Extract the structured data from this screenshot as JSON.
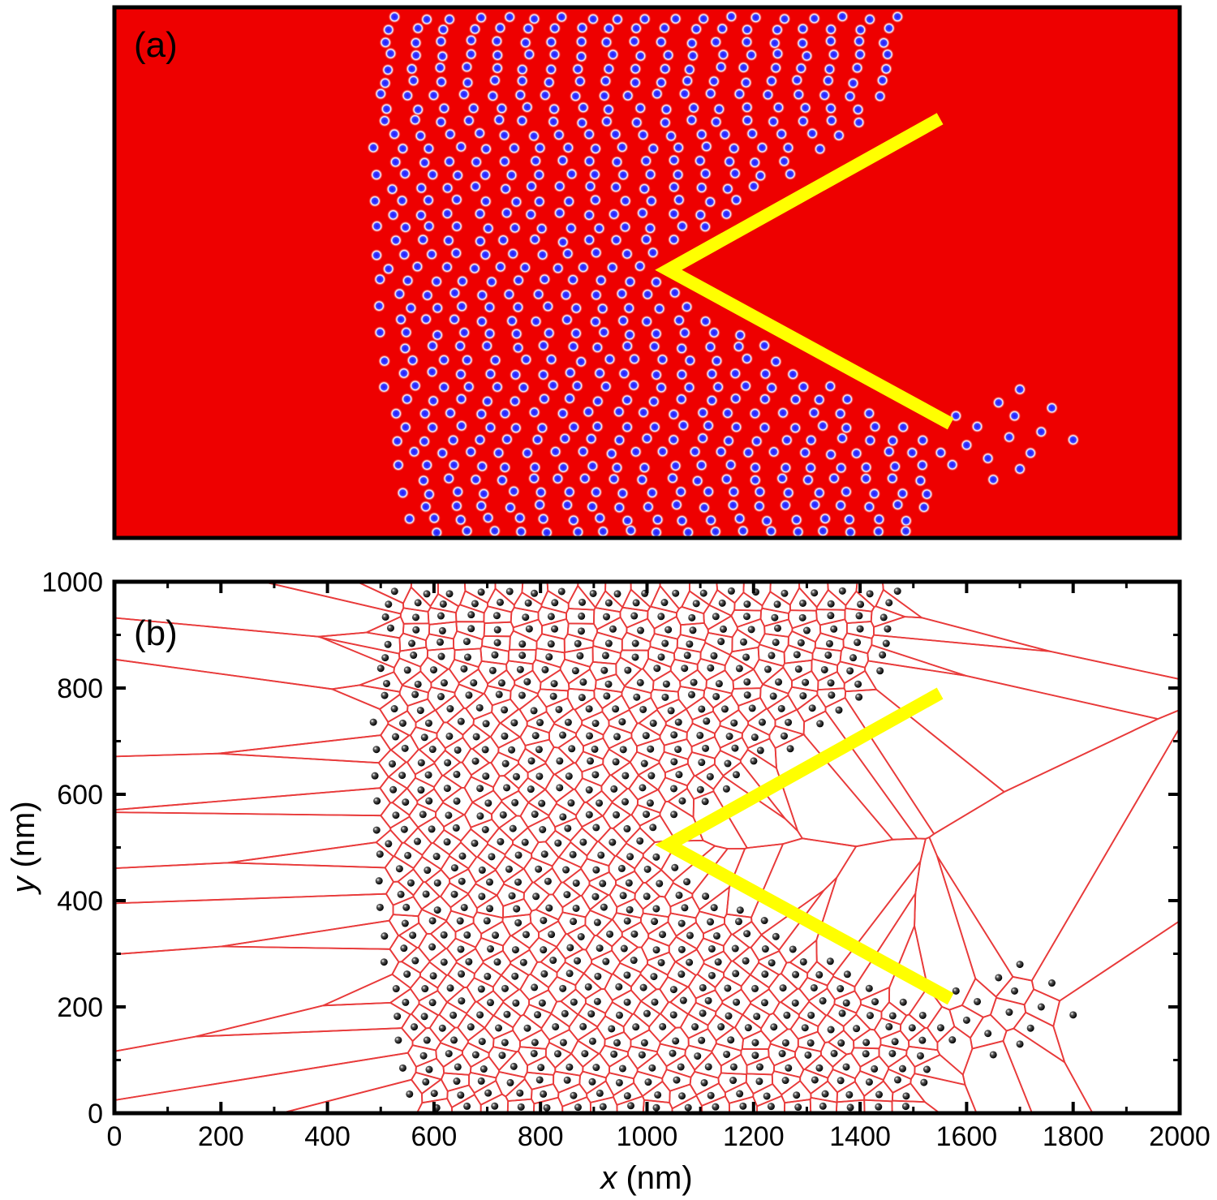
{
  "panels": [
    {
      "id": "a",
      "label": "(a)"
    },
    {
      "id": "b",
      "label": "(b)"
    }
  ],
  "colors": {
    "background_a": "#ee0000",
    "vortex_core": "#1a1aff",
    "vortex_halo": "#ffffff",
    "barrier": "#ffff00",
    "voronoi_edge": "#e83a3a",
    "particle": "#111111",
    "frame": "#000000"
  },
  "chart_data": {
    "type": "scatter",
    "xlabel_var": "x",
    "xlabel_unit": " (nm)",
    "ylabel_var": "y",
    "ylabel_unit": " (nm)",
    "xlim": [
      0,
      2000
    ],
    "ylim": [
      0,
      1000
    ],
    "xticks": [
      0,
      200,
      400,
      600,
      800,
      1000,
      1200,
      1400,
      1600,
      1800,
      2000
    ],
    "yticks": [
      0,
      200,
      400,
      600,
      800,
      1000
    ],
    "grid": false,
    "barrier": {
      "description_vertices": [
        [
          1550,
          790
        ],
        [
          1040,
          505
        ],
        [
          1570,
          215
        ]
      ]
    },
    "particle_rows": [
      {
        "y": 980,
        "x_start": 530,
        "x_end": 1470
      },
      {
        "y": 960,
        "x_start": 490,
        "x_end": 1500
      },
      {
        "y": 935,
        "x_start": 510,
        "x_end": 1480
      },
      {
        "y": 910,
        "x_start": 490,
        "x_end": 1490
      },
      {
        "y": 885,
        "x_start": 510,
        "x_end": 1480
      },
      {
        "y": 860,
        "x_start": 480,
        "x_end": 1470
      },
      {
        "y": 835,
        "x_start": 500,
        "x_end": 1450
      },
      {
        "y": 810,
        "x_start": 490,
        "x_end": 1420
      },
      {
        "y": 785,
        "x_start": 510,
        "x_end": 1400
      },
      {
        "y": 760,
        "x_start": 500,
        "x_end": 1370
      },
      {
        "y": 735,
        "x_start": 490,
        "x_end": 1340
      },
      {
        "y": 710,
        "x_start": 500,
        "x_end": 1300
      },
      {
        "y": 685,
        "x_start": 490,
        "x_end": 1270
      },
      {
        "y": 660,
        "x_start": 500,
        "x_end": 1230
      },
      {
        "y": 635,
        "x_start": 490,
        "x_end": 1200
      },
      {
        "y": 610,
        "x_start": 500,
        "x_end": 1160
      },
      {
        "y": 585,
        "x_start": 490,
        "x_end": 1130
      },
      {
        "y": 560,
        "x_start": 500,
        "x_end": 1090
      },
      {
        "y": 535,
        "x_start": 490,
        "x_end": 1050
      },
      {
        "y": 510,
        "x_start": 490,
        "x_end": 1010
      },
      {
        "y": 485,
        "x_start": 500,
        "x_end": 1030
      },
      {
        "y": 460,
        "x_start": 510,
        "x_end": 1070
      },
      {
        "y": 435,
        "x_start": 500,
        "x_end": 1110
      },
      {
        "y": 410,
        "x_start": 510,
        "x_end": 1150
      },
      {
        "y": 385,
        "x_start": 500,
        "x_end": 1190
      },
      {
        "y": 360,
        "x_start": 520,
        "x_end": 1230
      },
      {
        "y": 335,
        "x_start": 510,
        "x_end": 1270
      },
      {
        "y": 310,
        "x_start": 520,
        "x_end": 1320
      },
      {
        "y": 285,
        "x_start": 510,
        "x_end": 1360
      },
      {
        "y": 260,
        "x_start": 520,
        "x_end": 1410
      },
      {
        "y": 235,
        "x_start": 530,
        "x_end": 1450
      },
      {
        "y": 210,
        "x_start": 520,
        "x_end": 1490
      },
      {
        "y": 185,
        "x_start": 530,
        "x_end": 1540
      },
      {
        "y": 160,
        "x_start": 540,
        "x_end": 1580
      },
      {
        "y": 135,
        "x_start": 530,
        "x_end": 1580
      },
      {
        "y": 110,
        "x_start": 550,
        "x_end": 1560
      },
      {
        "y": 85,
        "x_start": 540,
        "x_end": 1550
      },
      {
        "y": 60,
        "x_start": 560,
        "x_end": 1540
      },
      {
        "y": 35,
        "x_start": 550,
        "x_end": 1530
      },
      {
        "y": 12,
        "x_start": 580,
        "x_end": 1520
      }
    ],
    "extra_particles": [
      [
        1620,
        210
      ],
      [
        1660,
        255
      ],
      [
        1700,
        280
      ],
      [
        1760,
        245
      ],
      [
        1800,
        185
      ],
      [
        1680,
        190
      ],
      [
        1720,
        160
      ],
      [
        1640,
        150
      ],
      [
        1700,
        130
      ],
      [
        1740,
        200
      ],
      [
        1600,
        175
      ],
      [
        1650,
        110
      ],
      [
        1690,
        230
      ],
      [
        1580,
        230
      ]
    ],
    "row_spacing_x": 52
  }
}
